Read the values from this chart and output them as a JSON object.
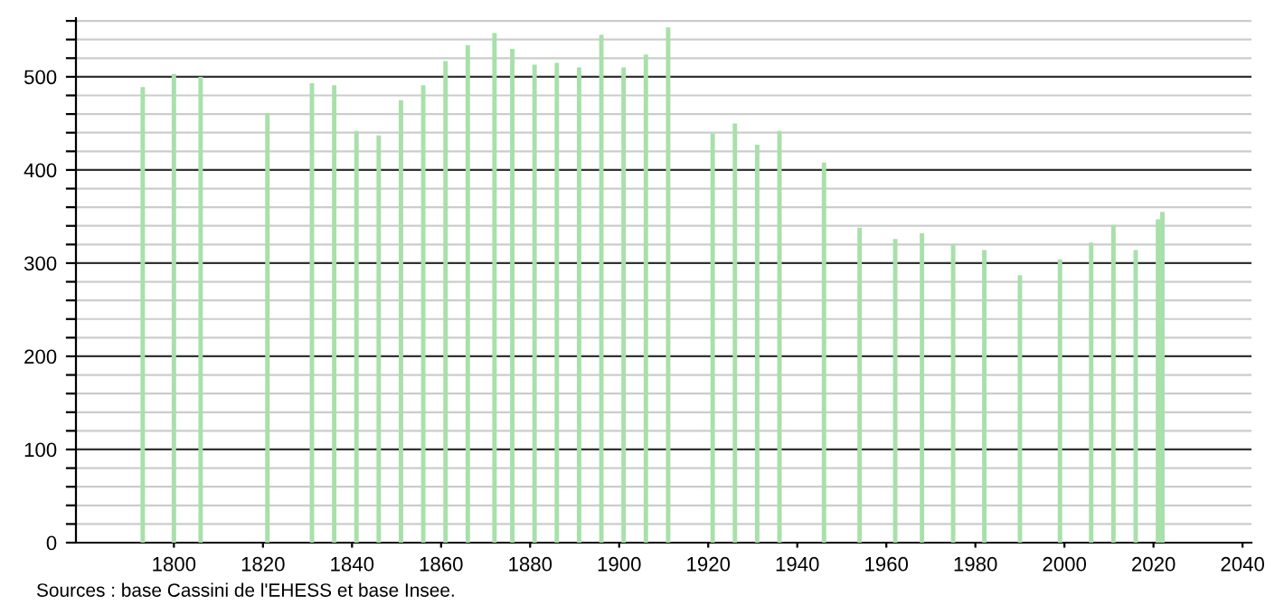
{
  "chart_data": {
    "type": "bar",
    "x": [
      1793,
      1800,
      1806,
      1821,
      1831,
      1836,
      1841,
      1846,
      1851,
      1856,
      1861,
      1866,
      1872,
      1876,
      1881,
      1886,
      1891,
      1896,
      1901,
      1906,
      1911,
      1921,
      1926,
      1931,
      1936,
      1946,
      1954,
      1962,
      1968,
      1975,
      1982,
      1990,
      1999,
      2006,
      2011,
      2016,
      2021,
      2022
    ],
    "values": [
      489,
      503,
      500,
      461,
      493,
      491,
      442,
      437,
      475,
      491,
      517,
      534,
      547,
      530,
      513,
      515,
      510,
      545,
      510,
      524,
      553,
      439,
      450,
      427,
      442,
      408,
      338,
      326,
      332,
      320,
      314,
      287,
      304,
      322,
      341,
      314,
      347,
      355
    ],
    "color": "#a8e0aa",
    "xlim": [
      1778,
      2042
    ],
    "xticks": [
      1800,
      1820,
      1840,
      1860,
      1880,
      1900,
      1920,
      1940,
      1960,
      1980,
      2000,
      2020,
      2040
    ],
    "ylim": [
      0,
      563
    ],
    "yticks": [
      0,
      {
        "value": 20,
        "label": null
      },
      {
        "value": 40,
        "label": null
      },
      {
        "value": 60,
        "label": null
      },
      {
        "value": 80,
        "label": null
      },
      100,
      {
        "value": 120,
        "label": null
      },
      {
        "value": 140,
        "label": null
      },
      {
        "value": 160,
        "label": null
      },
      {
        "value": 180,
        "label": null
      },
      200,
      {
        "value": 220,
        "label": null
      },
      {
        "value": 240,
        "label": null
      },
      {
        "value": 260,
        "label": null
      },
      {
        "value": 280,
        "label": null
      },
      300,
      {
        "value": 320,
        "label": null
      },
      {
        "value": 340,
        "label": null
      },
      {
        "value": 360,
        "label": null
      },
      {
        "value": 380,
        "label": null
      },
      400,
      {
        "value": 420,
        "label": null
      },
      {
        "value": 440,
        "label": null
      },
      {
        "value": 460,
        "label": null
      },
      {
        "value": 480,
        "label": null
      },
      500,
      {
        "value": 520,
        "label": null
      },
      {
        "value": 540,
        "label": null
      },
      {
        "value": 560,
        "label": null
      }
    ],
    "grid": "y",
    "annotations": [
      "Sources : base Cassini de l'EHESS et base Insee."
    ]
  }
}
